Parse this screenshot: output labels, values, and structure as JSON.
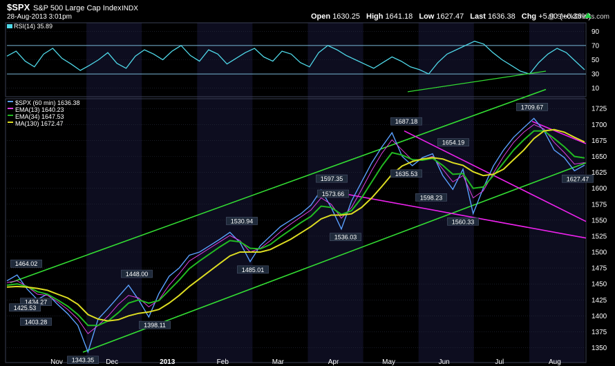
{
  "header": {
    "symbol": "$SPX",
    "name": "S&P 500 Large Cap Index",
    "exchange": "INDX",
    "datetime": "28-Aug-2013 3:01pm",
    "watermark": "@ StockCharts.com",
    "open_label": "Open",
    "open": "1630.25",
    "high_label": "High",
    "high": "1641.18",
    "low_label": "Low",
    "low": "1627.47",
    "last_label": "Last",
    "last": "1636.38",
    "chg_label": "Chg",
    "chg": "+5.90 (+0.36%)"
  },
  "rsi_panel": {
    "legend": "RSI(14) 35.89",
    "ticks": [
      90,
      70,
      50,
      30,
      10
    ],
    "overbought": 70,
    "oversold": 30,
    "ylim": [
      0,
      100
    ]
  },
  "price_panel": {
    "legend": [
      {
        "label": "$SPX (60 min) 1636.38",
        "color": "#5aa0ff"
      },
      {
        "label": "EMA(13) 1640.23",
        "color": "#e040e0"
      },
      {
        "label": "EMA(34) 1647.53",
        "color": "#22bb22"
      },
      {
        "label": "MA(130) 1672.47",
        "color": "#dddd22"
      }
    ]
  },
  "colors": {
    "background": "#000000",
    "band": "#0d0d1f",
    "price": "#5aa0ff",
    "ema13": "#e040e0",
    "ema34": "#22bb22",
    "ma130": "#dddd22",
    "channel": "#33dd33",
    "wedge": "#ee22ee",
    "rsi": "#4fd8e8",
    "grid": "#2a2f3f",
    "axis_text": "#ffffff"
  },
  "chart_data": {
    "type": "line",
    "title": "$SPX S&P 500 Large Cap Index INDX",
    "ylim": [
      1330,
      1735
    ],
    "y_ticks": [
      1725,
      1700,
      1675,
      1650,
      1625,
      1600,
      1575,
      1550,
      1525,
      1500,
      1475,
      1450,
      1425,
      1400,
      1375,
      1350
    ],
    "x_ticks": [
      "Nov",
      "Dec",
      "2013",
      "Feb",
      "Mar",
      "Apr",
      "May",
      "Jun",
      "Jul",
      "Aug"
    ],
    "series": [
      {
        "name": "$SPX (60 min)",
        "values": [
          1455,
          1464.02,
          1442,
          1425.53,
          1434.27,
          1418,
          1403.28,
          1385,
          1343.35,
          1395,
          1412,
          1430,
          1448.0,
          1425,
          1398.11,
          1435,
          1462,
          1475,
          1495,
          1500,
          1510,
          1520,
          1530.94,
          1515,
          1485.01,
          1510,
          1525,
          1540,
          1550,
          1560,
          1573.66,
          1597.35,
          1570,
          1536.03,
          1580,
          1610,
          1640,
          1665,
          1687.18,
          1650,
          1635.53,
          1648,
          1654.19,
          1620,
          1598.23,
          1630,
          1560.33,
          1600,
          1635,
          1660,
          1680,
          1695,
          1709.67,
          1690,
          1660,
          1648,
          1627.47,
          1636.38
        ]
      },
      {
        "name": "EMA(13)",
        "values": [
          1452,
          1455,
          1446,
          1434,
          1432,
          1422,
          1410,
          1395,
          1372,
          1385,
          1400,
          1418,
          1432,
          1428,
          1414,
          1425,
          1448,
          1466,
          1486,
          1496,
          1506,
          1516,
          1526,
          1518,
          1500,
          1506,
          1518,
          1532,
          1544,
          1555,
          1566,
          1585,
          1575,
          1553,
          1570,
          1598,
          1628,
          1655,
          1676,
          1660,
          1644,
          1645,
          1650,
          1630,
          1610,
          1620,
          1585,
          1596,
          1624,
          1650,
          1672,
          1688,
          1700,
          1693,
          1672,
          1656,
          1638,
          1640.23
        ]
      },
      {
        "name": "EMA(34)",
        "values": [
          1448,
          1450,
          1446,
          1438,
          1434,
          1425,
          1415,
          1402,
          1385,
          1385,
          1392,
          1405,
          1420,
          1425,
          1420,
          1424,
          1440,
          1456,
          1474,
          1486,
          1497,
          1508,
          1518,
          1516,
          1506,
          1505,
          1512,
          1524,
          1535,
          1546,
          1556,
          1572,
          1570,
          1559,
          1565,
          1585,
          1610,
          1635,
          1656,
          1652,
          1645,
          1644,
          1647,
          1636,
          1622,
          1623,
          1600,
          1602,
          1620,
          1640,
          1660,
          1676,
          1690,
          1690,
          1678,
          1665,
          1650,
          1647.53
        ]
      },
      {
        "name": "MA(130)",
        "values": [
          1445,
          1446,
          1445,
          1443,
          1440,
          1434,
          1428,
          1418,
          1402,
          1395,
          1392,
          1394,
          1400,
          1404,
          1406,
          1410,
          1420,
          1432,
          1446,
          1458,
          1470,
          1482,
          1494,
          1500,
          1500,
          1500,
          1504,
          1512,
          1520,
          1530,
          1540,
          1552,
          1558,
          1558,
          1560,
          1570,
          1585,
          1603,
          1622,
          1635,
          1642,
          1646,
          1648,
          1646,
          1640,
          1636,
          1626,
          1620,
          1622,
          1630,
          1645,
          1660,
          1678,
          1690,
          1692,
          1688,
          1680,
          1672.47
        ]
      }
    ],
    "annotations": [
      {
        "text": "1464.02",
        "value": 1464.02
      },
      {
        "text": "1434.27",
        "value": 1434.27
      },
      {
        "text": "1425.53",
        "value": 1425.53
      },
      {
        "text": "1403.28",
        "value": 1403.28
      },
      {
        "text": "1343.35",
        "value": 1343.35
      },
      {
        "text": "1448.00",
        "value": 1448.0
      },
      {
        "text": "1398.11",
        "value": 1398.11
      },
      {
        "text": "1530.94",
        "value": 1530.94
      },
      {
        "text": "1485.01",
        "value": 1485.01
      },
      {
        "text": "1573.66",
        "value": 1573.66
      },
      {
        "text": "1597.35",
        "value": 1597.35
      },
      {
        "text": "1536.03",
        "value": 1536.03
      },
      {
        "text": "1687.18",
        "value": 1687.18
      },
      {
        "text": "1635.53",
        "value": 1635.53
      },
      {
        "text": "1654.19",
        "value": 1654.19
      },
      {
        "text": "1598.23",
        "value": 1598.23
      },
      {
        "text": "1560.33",
        "value": 1560.33
      },
      {
        "text": "1709.67",
        "value": 1709.67
      },
      {
        "text": "1627.47",
        "value": 1627.47
      }
    ],
    "rsi_values": [
      55,
      62,
      48,
      40,
      58,
      66,
      52,
      44,
      35,
      42,
      50,
      60,
      45,
      38,
      55,
      64,
      58,
      50,
      62,
      70,
      56,
      48,
      64,
      58,
      44,
      52,
      60,
      66,
      54,
      48,
      62,
      58,
      46,
      40,
      60,
      70,
      64,
      56,
      50,
      44,
      38,
      46,
      54,
      48,
      40,
      36,
      30,
      46,
      58,
      64,
      70,
      76,
      72,
      60,
      50,
      42,
      34,
      30,
      46,
      58,
      66,
      60,
      48,
      35.89
    ]
  }
}
